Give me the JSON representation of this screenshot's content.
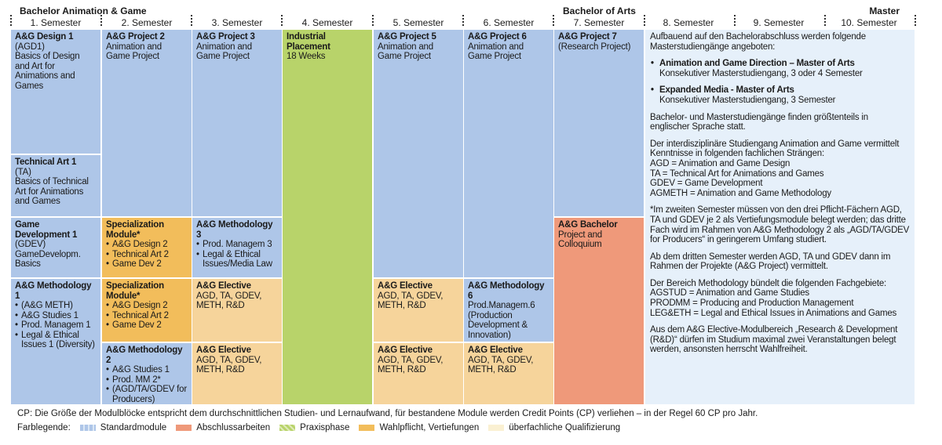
{
  "header": {
    "groups": [
      "Bachelor Animation & Game",
      "Bachelor of Arts",
      "Master"
    ],
    "semesters": [
      "1. Semester",
      "2. Semester",
      "3. Semester",
      "4. Semester",
      "5. Semester",
      "6. Semester",
      "7. Semester",
      "8. Semester",
      "9. Semester",
      "10. Semester"
    ]
  },
  "modules": [
    {
      "title": "A&G Design 1",
      "text": [
        "(AGD1)",
        "Basics of Design and Art for Animations and Games"
      ]
    },
    {
      "title": "Technical Art 1",
      "text": [
        "(TA)",
        "Basics of Technical Art for Animations and Games"
      ]
    },
    {
      "title": "Game Development 1",
      "text": [
        "(GDEV)",
        "GameDevelopm. Basics"
      ]
    },
    {
      "title": "A&G Methodology 1",
      "bullets": [
        "(A&G METH)",
        "A&G Studies 1",
        "Prod. Managem 1",
        "Legal & Ethical Issues 1 (Diversity)"
      ]
    },
    {
      "title": "A&G Project 2",
      "text": [
        "Animation and Game Project"
      ]
    },
    {
      "title": "Specialization Module*",
      "bullets": [
        "A&G Design 2",
        "Technical Art 2",
        "Game Dev 2"
      ]
    },
    {
      "title": "Specialization Module*",
      "bullets": [
        "A&G Design 2",
        "Technical Art 2",
        "Game Dev 2"
      ]
    },
    {
      "title": "A&G Methodology 2",
      "bullets": [
        "A&G Studies 1",
        "Prod. MM 2*",
        "(AGD/TA/GDEV for Producers)"
      ]
    },
    {
      "title": "A&G Project 3",
      "text": [
        "Animation and Game Project"
      ]
    },
    {
      "title": "A&G Methodology 3",
      "bullets": [
        "Prod. Managem 3",
        "Legal & Ethical Issues/Media Law"
      ]
    },
    {
      "title": "A&G Elective",
      "text": [
        "AGD, TA, GDEV, METH, R&D"
      ]
    },
    {
      "title": "A&G Elective",
      "text": [
        "AGD, TA, GDEV, METH, R&D"
      ]
    },
    {
      "title": "Industrial Placement",
      "text": [
        "18 Weeks"
      ]
    },
    {
      "title": "A&G Project 5",
      "text": [
        "Animation and Game Project"
      ]
    },
    {
      "title": "A&G Elective",
      "text": [
        "AGD, TA, GDEV, METH, R&D"
      ]
    },
    {
      "title": "A&G Elective",
      "text": [
        "AGD, TA, GDEV, METH, R&D"
      ]
    },
    {
      "title": "A&G Project 6",
      "text": [
        "Animation and Game Project"
      ]
    },
    {
      "title": "A&G Methodology 6",
      "text": [
        "Prod.Managem.6",
        "(Production Development & Innovation)"
      ]
    },
    {
      "title": "A&G Elective",
      "text": [
        "AGD, TA, GDEV, METH, R&D"
      ]
    },
    {
      "title": "A&G Project 7",
      "text": [
        "(Research Project)"
      ]
    },
    {
      "title": "A&G Bachelor",
      "text": [
        "Project and Colloquium"
      ]
    }
  ],
  "info": {
    "intro": "Aufbauend auf den Bachelorabschluss werden folgende Masterstudiengänge angeboten:",
    "degrees": [
      {
        "title": "Animation and Game Direction – Master of Arts",
        "text": "Konsekutiver Masterstudiengang, 3 oder 4 Semester"
      },
      {
        "title": "Expanded Media - Master of Arts",
        "text": "Konsekutiver Masterstudiengang, 3 Semester"
      }
    ],
    "paragraphs": [
      {
        "text": "Bachelor- und Masterstudiengänge finden größtenteils in englischer Sprache statt.",
        "lines": []
      },
      {
        "text": "Der interdisziplinäre Studiengang Animation and Game vermittelt Kenntnisse in folgenden fachlichen Strängen:",
        "lines": [
          "AGD = Animation and Game Design",
          "TA = Technical Art for Animations and Games",
          "GDEV = Game Development",
          "AGMETH = Animation and Game Methodology"
        ]
      },
      {
        "text": "*Im zweiten Semester müssen von den drei Pflicht-Fächern AGD, TA und GDEV je 2 als Vertiefungsmodule belegt werden; das dritte Fach wird im Rahmen von A&G Methodology 2 als „AGD/TA/GDEV for Producers“ in geringerem Umfang studiert.",
        "lines": []
      },
      {
        "text": "Ab dem dritten Semester werden AGD, TA und GDEV dann im Rahmen der Projekte (A&G Project) vermittelt.",
        "lines": []
      },
      {
        "text": "Der Bereich Methodology bündelt die folgenden Fachgebiete:",
        "lines": [
          "AGSTUD = Animation and Game Studies",
          "PRODMM = Producing and Production Management",
          "LEG&ETH = Legal and Ethical Issues in Animations and Games"
        ]
      },
      {
        "text": "Aus dem A&G Elective-Modulbereich „Research & Development (R&D)“ dürfen im Studium maximal zwei Veranstaltungen belegt werden, ansonsten herrscht Wahlfreiheit.",
        "lines": []
      }
    ]
  },
  "footer": {
    "note": "CP: Die Größe der Modulblöcke entspricht dem durchschnittlichen Studien- und Lernaufwand, für bestandene Module werden Credit Points (CP) verliehen – in der Regel 60 CP pro Jahr.",
    "legend_title": "Farblegende:",
    "legend": [
      "Standardmodule",
      "Abschlussarbeiten",
      "Praxisphase",
      "Wahlpflicht, Vertiefungen",
      "überfachliche Qualifizierung"
    ]
  }
}
